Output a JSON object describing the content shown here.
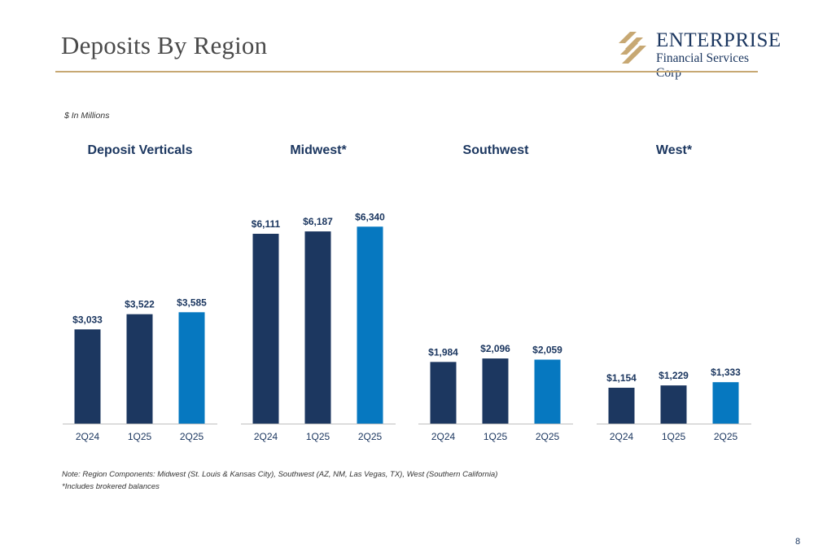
{
  "page": {
    "title": "Deposits By Region",
    "units_note": "$ In Millions",
    "note": "Note: Region Components: Midwest (St. Louis & Kansas City), Southwest (AZ, NM, Las Vegas, TX), West (Southern California)",
    "footnote": "*Includes brokered balances",
    "page_number": "8"
  },
  "logo": {
    "name": "ENTERPRISE",
    "subtitle": "Financial Services Corp"
  },
  "colors": {
    "dark_bar": "#1c3760",
    "highlight_bar": "#0678c0",
    "rule": "#c7a873",
    "text": "#1c3760"
  },
  "chart_data": [
    {
      "type": "bar",
      "title": "Deposit Verticals",
      "categories": [
        "2Q24",
        "1Q25",
        "2Q25"
      ],
      "values": [
        3033,
        3522,
        3585
      ],
      "labels": [
        "$3,033",
        "$3,522",
        "$3,585"
      ],
      "highlight_index": 2
    },
    {
      "type": "bar",
      "title": "Midwest*",
      "categories": [
        "2Q24",
        "1Q25",
        "2Q25"
      ],
      "values": [
        6111,
        6187,
        6340
      ],
      "labels": [
        "$6,111",
        "$6,187",
        "$6,340"
      ],
      "highlight_index": 2
    },
    {
      "type": "bar",
      "title": "Southwest",
      "categories": [
        "2Q24",
        "1Q25",
        "2Q25"
      ],
      "values": [
        1984,
        2096,
        2059
      ],
      "labels": [
        "$1,984",
        "$2,096",
        "$2,059"
      ],
      "highlight_index": 2
    },
    {
      "type": "bar",
      "title": "West*",
      "categories": [
        "2Q24",
        "1Q25",
        "2Q25"
      ],
      "values": [
        1154,
        1229,
        1333
      ],
      "labels": [
        "$1,154",
        "$1,229",
        "$1,333"
      ],
      "highlight_index": 2
    }
  ]
}
